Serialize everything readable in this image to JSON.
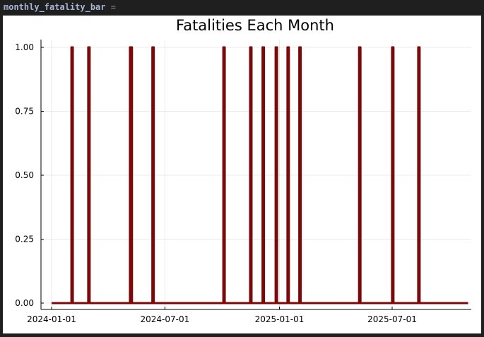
{
  "cell": {
    "variable": "monthly_fatality_bar",
    "operator": "="
  },
  "chart_data": {
    "type": "line",
    "title": "Fatalities Each Month",
    "xlabel": "",
    "ylabel": "",
    "x_range": [
      "2024-01-01",
      "2025-10-31"
    ],
    "ylim": [
      0,
      1
    ],
    "x_ticks": [
      "2024-01-01",
      "2024-07-01",
      "2025-01-01",
      "2025-07-01"
    ],
    "y_ticks": [
      0,
      0.25,
      0.5,
      0.75,
      1
    ],
    "y_tick_labels": [
      "0.00",
      "0.25",
      "0.50",
      "0.75",
      "1.00"
    ],
    "grid": true,
    "legend": "none",
    "series": [
      {
        "color": "#7a0a0a",
        "dates": [
          "2024-02-03",
          "2024-03-01",
          "2024-05-07",
          "2024-05-08",
          "2024-06-12",
          "2024-10-04",
          "2024-11-16",
          "2024-12-06",
          "2024-12-27",
          "2025-01-15",
          "2025-02-03",
          "2025-05-10",
          "2025-07-02",
          "2025-08-13"
        ],
        "value": 1,
        "baseline": 0
      }
    ]
  }
}
